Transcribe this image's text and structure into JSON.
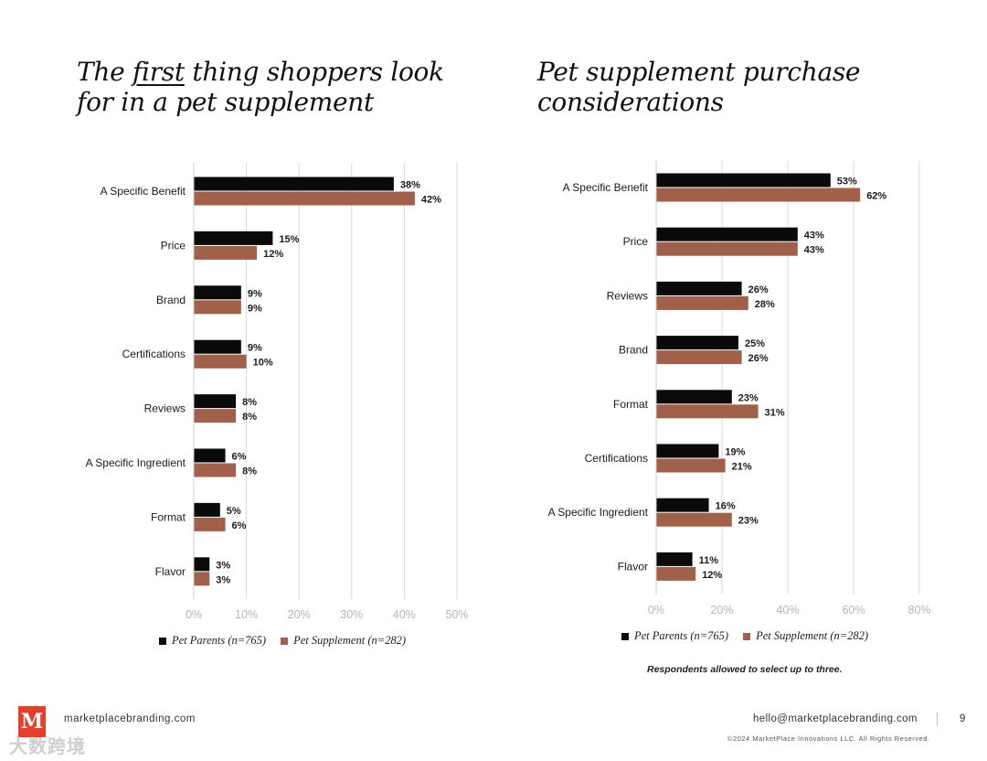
{
  "titles": {
    "left_pre": "The ",
    "left_em": "first",
    "left_post": " thing shoppers look for in a pet supplement",
    "right": "Pet supplement purchase considerations"
  },
  "colors": {
    "parents": "#0a0a0a",
    "supplement": "#a0604a",
    "grid": "#d9d9d9",
    "axis_text": "#b5b5b5"
  },
  "chart_data": [
    {
      "type": "bar",
      "orientation": "horizontal",
      "categories": [
        "A Specific Benefit",
        "Price",
        "Brand",
        "Certifications",
        "Reviews",
        "A Specific Ingredient",
        "Format",
        "Flavor"
      ],
      "series": [
        {
          "name": "Pet Parents (n=765)",
          "values": [
            38,
            15,
            9,
            9,
            8,
            6,
            5,
            3
          ],
          "labels": [
            "38%",
            "15%",
            "9%",
            "9%",
            "8%",
            "6%",
            "5%",
            "3%"
          ]
        },
        {
          "name": "Pet Supplement (n=282)",
          "values": [
            42,
            12,
            9,
            10,
            8,
            8,
            6,
            3
          ],
          "labels": [
            "42%",
            "12%",
            "9%",
            "10%",
            "8%",
            "8%",
            "6%",
            "3%"
          ]
        }
      ],
      "xlim": [
        0,
        50
      ],
      "ticks": [
        0,
        10,
        20,
        30,
        40,
        50
      ],
      "tick_labels": [
        "0%",
        "10%",
        "20%",
        "30%",
        "40%",
        "50%"
      ],
      "grid": true,
      "legend": "bottom"
    },
    {
      "type": "bar",
      "orientation": "horizontal",
      "categories": [
        "A Specific Benefit",
        "Price",
        "Reviews",
        "Brand",
        "Format",
        "Certifications",
        "A Specific Ingredient",
        "Flavor"
      ],
      "series": [
        {
          "name": "Pet Parents (n=765)",
          "values": [
            53,
            43,
            26,
            25,
            23,
            19,
            16,
            11
          ],
          "labels": [
            "53%",
            "43%",
            "26%",
            "25%",
            "23%",
            "19%",
            "16%",
            "11%"
          ]
        },
        {
          "name": "Pet Supplement (n=282)",
          "values": [
            62,
            43,
            28,
            26,
            31,
            21,
            23,
            12
          ],
          "labels": [
            "62%",
            "43%",
            "28%",
            "26%",
            "31%",
            "21%",
            "23%",
            "12%"
          ]
        }
      ],
      "xlim": [
        0,
        80
      ],
      "ticks": [
        0,
        20,
        40,
        60,
        80
      ],
      "tick_labels": [
        "0%",
        "20%",
        "40%",
        "60%",
        "80%"
      ],
      "grid": true,
      "legend": "bottom"
    }
  ],
  "footnote": "Respondents allowed to select up to three.",
  "footer": {
    "logo_letter": "M",
    "site": "marketplacebranding.com",
    "email": "hello@marketplacebranding.com",
    "page": "9",
    "copyright": "©2024 MarketPlace Innovations LLC. All Rights Reserved.",
    "watermark": "大数跨境"
  }
}
